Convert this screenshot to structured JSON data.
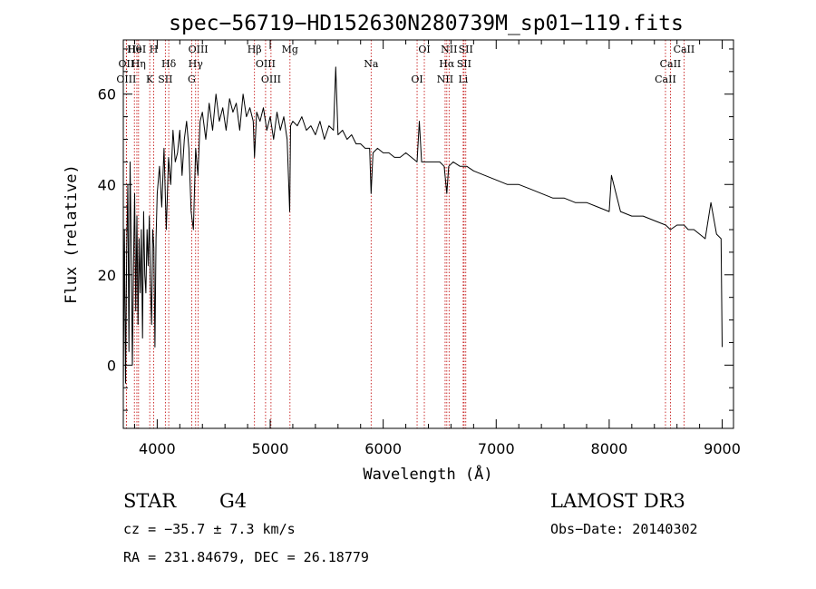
{
  "chart_data": {
    "type": "line",
    "title": "spec−56719−HD152630N280739M_sp01−119.fits",
    "xlabel": "Wavelength (Å)",
    "ylabel": "Flux (relative)",
    "xlim": [
      3700,
      9100
    ],
    "ylim": [
      -14,
      72
    ],
    "xticks": [
      4000,
      5000,
      6000,
      7000,
      8000,
      9000
    ],
    "yticks": [
      0,
      20,
      40,
      60
    ],
    "grid": false,
    "series": [
      {
        "name": "flux",
        "x": [
          3700,
          3710,
          3720,
          3730,
          3740,
          3750,
          3760,
          3770,
          3780,
          3790,
          3800,
          3810,
          3820,
          3830,
          3840,
          3850,
          3860,
          3870,
          3880,
          3890,
          3900,
          3910,
          3920,
          3930,
          3940,
          3950,
          3960,
          3970,
          3980,
          3990,
          4000,
          4020,
          4040,
          4060,
          4080,
          4100,
          4120,
          4140,
          4160,
          4180,
          4200,
          4220,
          4240,
          4260,
          4280,
          4300,
          4320,
          4340,
          4360,
          4380,
          4400,
          4430,
          4460,
          4490,
          4520,
          4550,
          4580,
          4610,
          4640,
          4670,
          4700,
          4730,
          4760,
          4790,
          4820,
          4850,
          4861,
          4880,
          4910,
          4940,
          4970,
          5000,
          5030,
          5060,
          5090,
          5120,
          5150,
          5172,
          5180,
          5200,
          5240,
          5280,
          5320,
          5360,
          5400,
          5440,
          5480,
          5520,
          5560,
          5580,
          5600,
          5640,
          5680,
          5720,
          5760,
          5800,
          5840,
          5880,
          5893,
          5910,
          5950,
          6000,
          6050,
          6100,
          6150,
          6200,
          6250,
          6300,
          6320,
          6340,
          6400,
          6450,
          6500,
          6540,
          6563,
          6580,
          6620,
          6680,
          6740,
          6800,
          6900,
          7000,
          7100,
          7200,
          7300,
          7400,
          7500,
          7600,
          7700,
          7800,
          7900,
          8000,
          8020,
          8100,
          8200,
          8300,
          8400,
          8500,
          8542,
          8600,
          8662,
          8700,
          8750,
          8800,
          8850,
          8900,
          8950,
          8990,
          9000
        ],
        "values": [
          -6,
          30,
          -4,
          25,
          40,
          3,
          45,
          26,
          0,
          22,
          38,
          12,
          33,
          9,
          28,
          16,
          30,
          6,
          34,
          20,
          16,
          30,
          22,
          33,
          18,
          9,
          30,
          26,
          4,
          28,
          38,
          44,
          35,
          48,
          30,
          46,
          40,
          52,
          45,
          47,
          52,
          42,
          50,
          54,
          48,
          34,
          30,
          48,
          42,
          54,
          56,
          50,
          58,
          52,
          60,
          54,
          57,
          52,
          59,
          56,
          58,
          52,
          60,
          55,
          57,
          54,
          46,
          56,
          54,
          57,
          52,
          55,
          50,
          56,
          52,
          55,
          50,
          34,
          53,
          54,
          53,
          55,
          52,
          53,
          51,
          54,
          50,
          53,
          52,
          66,
          51,
          52,
          50,
          51,
          49,
          49,
          48,
          48,
          38,
          47,
          48,
          47,
          47,
          46,
          46,
          47,
          46,
          45,
          54,
          45,
          45,
          45,
          45,
          44,
          38,
          44,
          45,
          44,
          44,
          43,
          42,
          41,
          40,
          40,
          39,
          38,
          37,
          37,
          36,
          36,
          35,
          34,
          42,
          34,
          33,
          33,
          32,
          31,
          30,
          31,
          31,
          30,
          30,
          29,
          28,
          36,
          29,
          28,
          4
        ]
      }
    ],
    "spectral_lines": [
      {
        "label": "Hθ",
        "wl": 3798
      },
      {
        "label": "OII",
        "wl": 3727
      },
      {
        "label": "OIII",
        "wl": 3727
      },
      {
        "label": "HeI",
        "wl": 3820
      },
      {
        "label": "Hη",
        "wl": 3835
      },
      {
        "label": "K",
        "wl": 3934
      },
      {
        "label": "H",
        "wl": 3969
      },
      {
        "label": "Hδ",
        "wl": 4102
      },
      {
        "label": "SII",
        "wl": 4072
      },
      {
        "label": "OIII",
        "wl": 4363
      },
      {
        "label": "Hγ",
        "wl": 4340
      },
      {
        "label": "G",
        "wl": 4305
      },
      {
        "label": "Hβ",
        "wl": 4861
      },
      {
        "label": "OIII",
        "wl": 4959
      },
      {
        "label": "OIII",
        "wl": 5007
      },
      {
        "label": "Mg",
        "wl": 5175
      },
      {
        "label": "Na",
        "wl": 5893
      },
      {
        "label": "OI",
        "wl": 6300
      },
      {
        "label": "OI",
        "wl": 6364
      },
      {
        "label": "Hα",
        "wl": 6563
      },
      {
        "label": "NII",
        "wl": 6548
      },
      {
        "label": "NII",
        "wl": 6583
      },
      {
        "label": "SII",
        "wl": 6716
      },
      {
        "label": "Li",
        "wl": 6708
      },
      {
        "label": "SII",
        "wl": 6731
      },
      {
        "label": "CaII",
        "wl": 8542
      },
      {
        "label": "CaII",
        "wl": 8498
      },
      {
        "label": "CaII",
        "wl": 8662
      }
    ]
  },
  "info": {
    "class": "STAR",
    "subclass": "G4",
    "survey": "LAMOST DR3",
    "redshift": "cz = −35.7 ± 7.3 km/s",
    "obs_date": "Obs−Date: 20140302",
    "coords": "RA = 231.84679, DEC =  26.18779"
  }
}
